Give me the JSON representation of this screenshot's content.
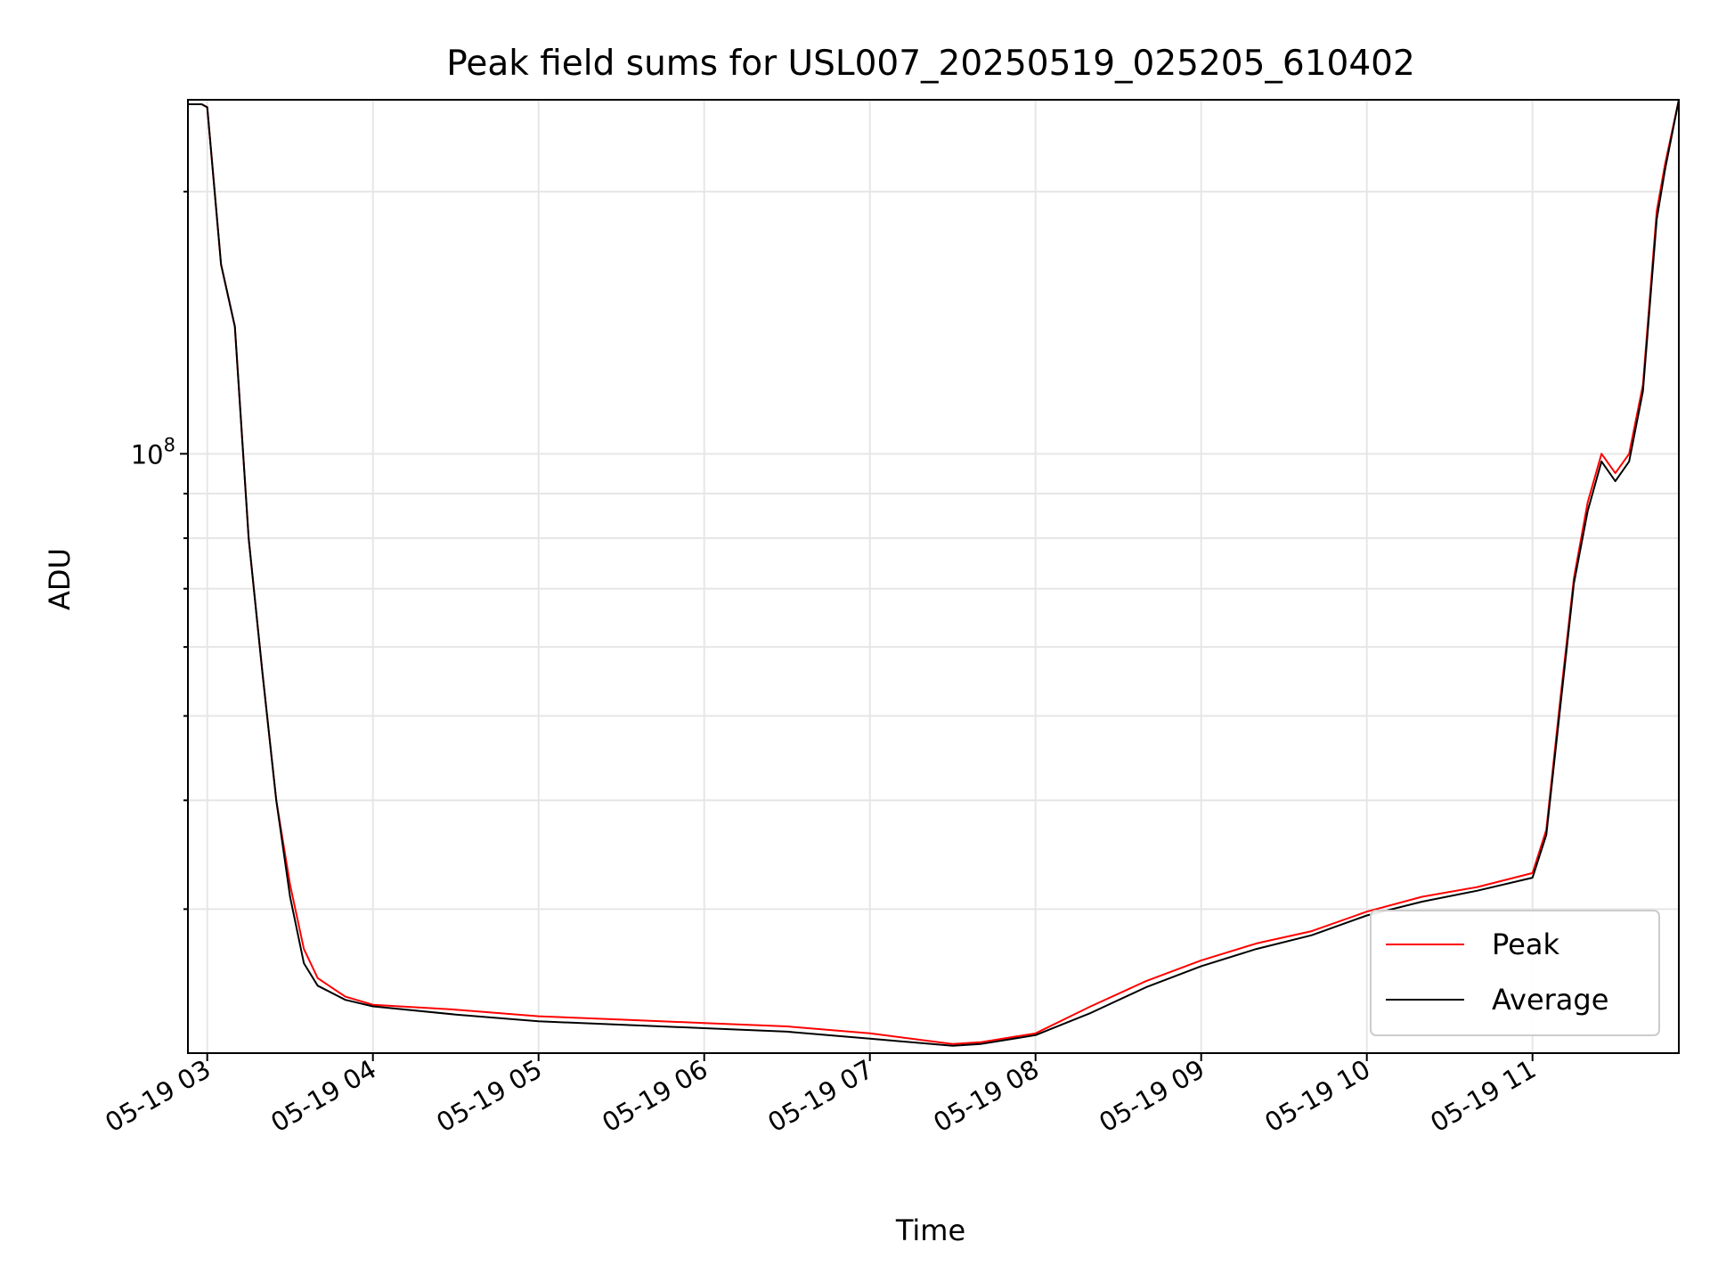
{
  "chart_data": {
    "type": "line",
    "title": "Peak field sums for USL007_20250519_025205_610402",
    "xlabel": "Time",
    "ylabel": "ADU",
    "yscale": "log",
    "grid": true,
    "legend_position": "lower right",
    "xlim": [
      "2025-05-19 02:53",
      "2025-05-19 11:53"
    ],
    "ylim": [
      20500000,
      255000000
    ],
    "x_ticks": [
      "05-19 03",
      "05-19 04",
      "05-19 05",
      "05-19 06",
      "05-19 07",
      "05-19 08",
      "05-19 09",
      "05-19 10",
      "05-19 11"
    ],
    "y_tick_base": "10",
    "y_tick_exponent": "8",
    "series": [
      {
        "name": "Peak",
        "color": "#ff0000",
        "x": [
          "2025-05-19 02:53",
          "2025-05-19 02:58",
          "2025-05-19 03:00",
          "2025-05-19 03:05",
          "2025-05-19 03:10",
          "2025-05-19 03:15",
          "2025-05-19 03:20",
          "2025-05-19 03:25",
          "2025-05-19 03:30",
          "2025-05-19 03:35",
          "2025-05-19 03:40",
          "2025-05-19 03:50",
          "2025-05-19 04:00",
          "2025-05-19 04:30",
          "2025-05-19 05:00",
          "2025-05-19 05:30",
          "2025-05-19 06:00",
          "2025-05-19 06:30",
          "2025-05-19 07:00",
          "2025-05-19 07:30",
          "2025-05-19 07:40",
          "2025-05-19 08:00",
          "2025-05-19 08:20",
          "2025-05-19 08:40",
          "2025-05-19 09:00",
          "2025-05-19 09:20",
          "2025-05-19 09:40",
          "2025-05-19 10:00",
          "2025-05-19 10:20",
          "2025-05-19 10:40",
          "2025-05-19 11:00",
          "2025-05-19 11:05",
          "2025-05-19 11:10",
          "2025-05-19 11:15",
          "2025-05-19 11:20",
          "2025-05-19 11:25",
          "2025-05-19 11:30",
          "2025-05-19 11:35",
          "2025-05-19 11:40",
          "2025-05-19 11:45",
          "2025-05-19 11:48",
          "2025-05-19 11:53"
        ],
        "values": [
          252000000,
          252000000,
          250000000,
          165000000,
          140000000,
          80000000,
          56000000,
          40000000,
          32000000,
          27000000,
          25000000,
          23800000,
          23300000,
          23000000,
          22600000,
          22400000,
          22200000,
          22000000,
          21600000,
          21000000,
          21100000,
          21600000,
          23200000,
          24800000,
          26200000,
          27400000,
          28300000,
          29800000,
          31000000,
          31800000,
          33000000,
          37000000,
          52000000,
          72000000,
          88000000,
          100000000,
          95000000,
          100000000,
          120000000,
          190000000,
          215000000,
          255000000
        ]
      },
      {
        "name": "Average",
        "color": "#000000",
        "x": [
          "2025-05-19 02:53",
          "2025-05-19 02:58",
          "2025-05-19 03:00",
          "2025-05-19 03:05",
          "2025-05-19 03:10",
          "2025-05-19 03:15",
          "2025-05-19 03:20",
          "2025-05-19 03:25",
          "2025-05-19 03:30",
          "2025-05-19 03:35",
          "2025-05-19 03:40",
          "2025-05-19 03:50",
          "2025-05-19 04:00",
          "2025-05-19 04:30",
          "2025-05-19 05:00",
          "2025-05-19 05:30",
          "2025-05-19 06:00",
          "2025-05-19 06:30",
          "2025-05-19 07:00",
          "2025-05-19 07:30",
          "2025-05-19 07:40",
          "2025-05-19 08:00",
          "2025-05-19 08:20",
          "2025-05-19 08:40",
          "2025-05-19 09:00",
          "2025-05-19 09:20",
          "2025-05-19 09:40",
          "2025-05-19 10:00",
          "2025-05-19 10:20",
          "2025-05-19 10:40",
          "2025-05-19 11:00",
          "2025-05-19 11:05",
          "2025-05-19 11:10",
          "2025-05-19 11:15",
          "2025-05-19 11:20",
          "2025-05-19 11:25",
          "2025-05-19 11:30",
          "2025-05-19 11:35",
          "2025-05-19 11:40",
          "2025-05-19 11:45",
          "2025-05-19 11:48",
          "2025-05-19 11:53"
        ],
        "values": [
          252000000,
          252000000,
          250000000,
          165000000,
          140000000,
          80000000,
          56000000,
          40000000,
          31000000,
          26000000,
          24500000,
          23600000,
          23200000,
          22700000,
          22300000,
          22100000,
          21900000,
          21700000,
          21300000,
          20900000,
          21000000,
          21500000,
          22800000,
          24400000,
          25800000,
          27000000,
          28000000,
          29500000,
          30600000,
          31500000,
          32600000,
          36500000,
          51000000,
          71000000,
          86000000,
          98000000,
          93000000,
          98000000,
          118000000,
          186000000,
          212000000,
          255000000
        ]
      }
    ]
  }
}
